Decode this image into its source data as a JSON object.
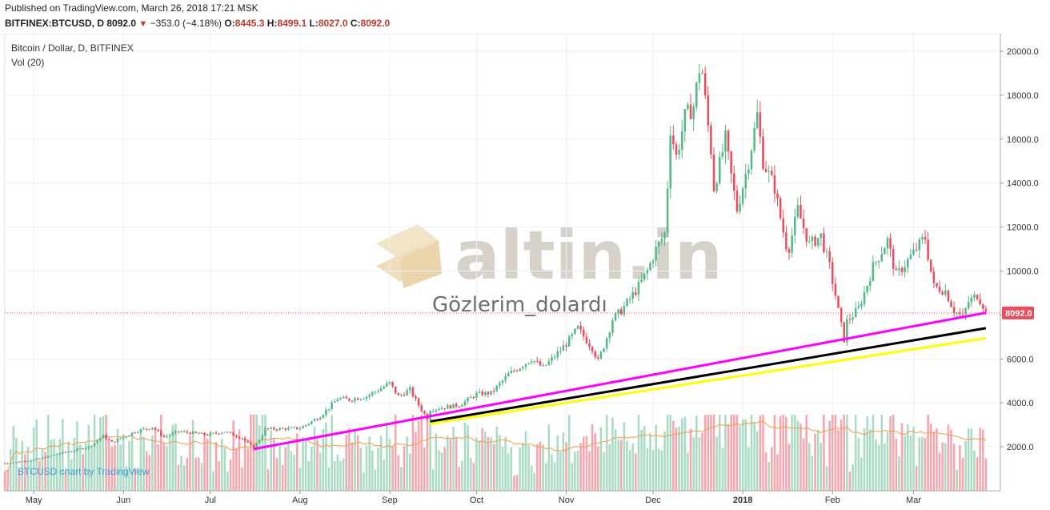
{
  "header": {
    "published": "Published on TradingView.com, March 26, 2018 17:21 MSK",
    "symbol": "BITFINEX:BTCUSD, D",
    "last": "8092.0",
    "change": "−353.0 (−4.18%)",
    "o_label": "O:",
    "o_value": "8445.3",
    "h_label": "H:",
    "h_value": "8499.1",
    "l_label": "L:",
    "l_value": "8027.0",
    "c_label": "C:",
    "c_value": "8092.0"
  },
  "legend": {
    "main": "Bitcoin / Dollar, D, BITFINEX",
    "volume": "Vol (20)"
  },
  "credit": "BTCUSD chart by TradingView",
  "watermark": {
    "brand": "altin.in",
    "author": "Gözlerim_dolardı"
  },
  "price_label": "8092.0",
  "colors": {
    "up": "#53b987",
    "down": "#eb4d5c",
    "up_vol": "#a9dcc3",
    "down_vol": "#f5a6ae",
    "magenta": "#ff00ff",
    "black": "#000000",
    "yellow": "#ffff00",
    "vol_ma": "#f29b4c",
    "price_tag": "#eb4d5c"
  },
  "chart_data": {
    "type": "candlestick",
    "xlabel": "",
    "ylabel": "",
    "ylim": [
      0,
      20800
    ],
    "y_ticks": [
      2000,
      4000,
      6000,
      8000,
      10000,
      12000,
      14000,
      16000,
      18000,
      20000
    ],
    "y_tick_labels": [
      "2000.0",
      "4000.0",
      "6000.0",
      "8000.0",
      "10000.0",
      "12000.0",
      "14000.0",
      "16000.0",
      "18000.0",
      "20000.0"
    ],
    "x_range": [
      "2017-04-21",
      "2018-03-31"
    ],
    "x_ticks": [
      {
        "date": "2017-05-01",
        "label": "May",
        "bold": false
      },
      {
        "date": "2017-06-01",
        "label": "Jun",
        "bold": false
      },
      {
        "date": "2017-07-01",
        "label": "Jul",
        "bold": false
      },
      {
        "date": "2017-08-01",
        "label": "Aug",
        "bold": false
      },
      {
        "date": "2017-09-01",
        "label": "Sep",
        "bold": false
      },
      {
        "date": "2017-10-01",
        "label": "Oct",
        "bold": false
      },
      {
        "date": "2017-11-01",
        "label": "Nov",
        "bold": false
      },
      {
        "date": "2017-12-01",
        "label": "Dec",
        "bold": false
      },
      {
        "date": "2018-01-01",
        "label": "2018",
        "bold": true
      },
      {
        "date": "2018-02-01",
        "label": "Feb",
        "bold": false
      },
      {
        "date": "2018-03-01",
        "label": "Mar",
        "bold": false
      }
    ],
    "price_path": [
      [
        "2017-04-21",
        1250
      ],
      [
        "2017-05-01",
        1400
      ],
      [
        "2017-05-10",
        1700
      ],
      [
        "2017-05-20",
        2000
      ],
      [
        "2017-05-25",
        2500
      ],
      [
        "2017-05-28",
        2200
      ],
      [
        "2017-06-05",
        2700
      ],
      [
        "2017-06-11",
        2900
      ],
      [
        "2017-06-15",
        2450
      ],
      [
        "2017-06-20",
        2700
      ],
      [
        "2017-06-30",
        2550
      ],
      [
        "2017-07-06",
        2700
      ],
      [
        "2017-07-12",
        2400
      ],
      [
        "2017-07-16",
        1950
      ],
      [
        "2017-07-20",
        2800
      ],
      [
        "2017-08-01",
        2850
      ],
      [
        "2017-08-08",
        3400
      ],
      [
        "2017-08-14",
        4200
      ],
      [
        "2017-08-18",
        4150
      ],
      [
        "2017-08-24",
        4300
      ],
      [
        "2017-09-01",
        4900
      ],
      [
        "2017-09-04",
        4300
      ],
      [
        "2017-09-08",
        4600
      ],
      [
        "2017-09-14",
        3300
      ],
      [
        "2017-09-15",
        3700
      ],
      [
        "2017-09-25",
        3900
      ],
      [
        "2017-10-01",
        4400
      ],
      [
        "2017-10-06",
        4450
      ],
      [
        "2017-10-12",
        5300
      ],
      [
        "2017-10-20",
        6000
      ],
      [
        "2017-10-24",
        5600
      ],
      [
        "2017-11-01",
        6700
      ],
      [
        "2017-11-05",
        7400
      ],
      [
        "2017-11-10",
        6500
      ],
      [
        "2017-11-12",
        5900
      ],
      [
        "2017-11-17",
        7800
      ],
      [
        "2017-11-20",
        8200
      ],
      [
        "2017-11-26",
        9300
      ],
      [
        "2017-11-29",
        10000
      ],
      [
        "2017-12-02",
        11000
      ],
      [
        "2017-12-05",
        11700
      ],
      [
        "2017-12-07",
        16500
      ],
      [
        "2017-12-09",
        15200
      ],
      [
        "2017-12-12",
        17000
      ],
      [
        "2017-12-15",
        17500
      ],
      [
        "2017-12-17",
        19200
      ],
      [
        "2017-12-18",
        19000
      ],
      [
        "2017-12-21",
        15500
      ],
      [
        "2017-12-22",
        13800
      ],
      [
        "2017-12-26",
        16000
      ],
      [
        "2017-12-30",
        12800
      ],
      [
        "2018-01-03",
        15000
      ],
      [
        "2018-01-06",
        17100
      ],
      [
        "2018-01-08",
        15000
      ],
      [
        "2018-01-12",
        13800
      ],
      [
        "2018-01-16",
        11200
      ],
      [
        "2018-01-17",
        11100
      ],
      [
        "2018-01-20",
        12800
      ],
      [
        "2018-01-24",
        11200
      ],
      [
        "2018-01-28",
        11600
      ],
      [
        "2018-01-31",
        10200
      ],
      [
        "2018-02-02",
        8900
      ],
      [
        "2018-02-05",
        6900
      ],
      [
        "2018-02-06",
        7700
      ],
      [
        "2018-02-10",
        8300
      ],
      [
        "2018-02-15",
        10200
      ],
      [
        "2018-02-20",
        11400
      ],
      [
        "2018-02-23",
        9800
      ],
      [
        "2018-02-26",
        10300
      ],
      [
        "2018-03-04",
        11400
      ],
      [
        "2018-03-05",
        11500
      ],
      [
        "2018-03-08",
        9300
      ],
      [
        "2018-03-12",
        9100
      ],
      [
        "2018-03-15",
        8200
      ],
      [
        "2018-03-18",
        7900
      ],
      [
        "2018-03-20",
        8600
      ],
      [
        "2018-03-23",
        8900
      ],
      [
        "2018-03-25",
        8445
      ],
      [
        "2018-03-26",
        8092
      ]
    ],
    "trendlines": [
      {
        "color": "magenta",
        "from": [
          "2017-07-16",
          1900
        ],
        "to": [
          "2018-03-26",
          8100
        ]
      },
      {
        "color": "black",
        "from": [
          "2017-09-15",
          3150
        ],
        "to": [
          "2018-03-26",
          7400
        ]
      },
      {
        "color": "yellow",
        "from": [
          "2017-09-15",
          3050
        ],
        "to": [
          "2018-03-26",
          6950
        ]
      }
    ]
  }
}
